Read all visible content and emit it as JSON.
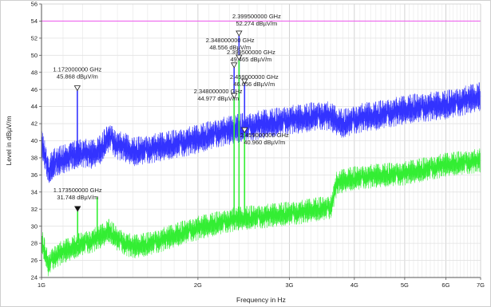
{
  "chart_data": {
    "type": "line",
    "xlabel": "Frequency in Hz",
    "ylabel": "Level in dBµV/m",
    "x_scale": "log",
    "xlim": [
      1,
      7
    ],
    "ylim": [
      24,
      56
    ],
    "grid": true,
    "x_tick_labels": [
      "1G",
      "2G",
      "3G",
      "4G",
      "5G",
      "6G",
      "7G"
    ],
    "x_tick_values": [
      1,
      2,
      3,
      4,
      5,
      6,
      7
    ],
    "y_ticks": [
      24,
      26,
      28,
      30,
      32,
      34,
      36,
      38,
      40,
      42,
      44,
      46,
      48,
      50,
      52,
      54,
      56
    ],
    "colors": {
      "peak": "#3333ff",
      "average": "#33ee33",
      "limit": "#ee66ee",
      "axes": "#555555"
    },
    "limit_line": {
      "value": 54
    },
    "series": [
      {
        "key": "peak",
        "x": [
          1.0,
          1.03,
          1.06,
          1.1,
          1.15,
          1.2,
          1.25,
          1.3,
          1.35,
          1.4,
          1.45,
          1.5,
          1.6,
          1.7,
          1.8,
          1.9,
          2.0,
          2.1,
          2.2,
          2.3,
          2.4,
          2.5,
          2.6,
          2.7,
          2.8,
          2.9,
          3.0,
          3.1,
          3.2,
          3.3,
          3.4,
          3.5,
          3.6,
          3.7,
          3.8,
          3.9,
          4.0,
          4.2,
          4.4,
          4.6,
          4.8,
          5.0,
          5.2,
          5.4,
          5.6,
          5.8,
          6.0,
          6.2,
          6.4,
          6.6,
          6.8,
          7.0
        ],
        "values": [
          40,
          36.5,
          37.5,
          37.8,
          38.3,
          38.6,
          38.4,
          39.0,
          40.5,
          39.5,
          39.2,
          38.7,
          39.0,
          39.3,
          39.6,
          39.9,
          40.2,
          40.6,
          41.0,
          41.2,
          41.5,
          41.6,
          41.8,
          42.0,
          42.1,
          42.3,
          42.5,
          42.5,
          42.6,
          42.8,
          42.9,
          43.0,
          42.8,
          42.3,
          42.0,
          42.2,
          42.5,
          42.8,
          42.9,
          43.2,
          43.4,
          43.6,
          43.8,
          43.9,
          44.0,
          44.1,
          44.2,
          44.4,
          44.6,
          44.8,
          45.0,
          45.2
        ],
        "noise": 1.7
      },
      {
        "key": "average",
        "x": [
          1.0,
          1.03,
          1.06,
          1.1,
          1.15,
          1.2,
          1.25,
          1.3,
          1.35,
          1.4,
          1.45,
          1.5,
          1.6,
          1.7,
          1.8,
          1.9,
          2.0,
          2.1,
          2.2,
          2.3,
          2.4,
          2.5,
          2.6,
          2.7,
          2.8,
          2.9,
          3.0,
          3.1,
          3.2,
          3.3,
          3.4,
          3.5,
          3.6,
          3.7,
          3.8,
          3.9,
          4.0,
          4.2,
          4.4,
          4.6,
          4.8,
          5.0,
          5.2,
          5.4,
          5.6,
          5.8,
          6.0,
          6.2,
          6.4,
          6.6,
          6.8,
          7.0
        ],
        "values": [
          28.5,
          25.5,
          26.5,
          27.0,
          27.5,
          28.0,
          28.3,
          28.8,
          29.5,
          28.5,
          28.0,
          27.6,
          27.9,
          28.4,
          28.9,
          29.4,
          29.8,
          30.1,
          30.4,
          30.7,
          30.9,
          31.0,
          31.1,
          31.2,
          31.3,
          31.4,
          31.5,
          31.6,
          31.7,
          31.9,
          32.0,
          32.1,
          32.2,
          35.0,
          35.3,
          35.5,
          35.6,
          35.8,
          35.9,
          36.0,
          36.1,
          36.2,
          36.4,
          36.6,
          36.8,
          37.0,
          37.2,
          37.3,
          37.4,
          37.5,
          37.6,
          37.7
        ],
        "noise": 1.4
      }
    ],
    "spikes": [
      {
        "series": "peak",
        "x": 1.172,
        "top": 45.868,
        "base": 38.5
      },
      {
        "series": "peak",
        "x": 2.348,
        "top": 48.556,
        "base": 41.3
      },
      {
        "series": "peak",
        "x": 2.3995,
        "top": 52.274,
        "base": 41.4
      },
      {
        "series": "peak",
        "x": 2.459,
        "top": 46.656,
        "base": 41.6
      },
      {
        "series": "average",
        "x": 1.1735,
        "top": 31.748,
        "base": 28.0
      },
      {
        "series": "average",
        "x": 1.28,
        "top": 33.4,
        "base": 29.0
      },
      {
        "series": "average",
        "x": 2.348,
        "top": 44.977,
        "base": 31.0
      },
      {
        "series": "average",
        "x": 2.3995,
        "top": 49.465,
        "base": 31.0
      },
      {
        "series": "average",
        "x": 2.459,
        "top": 40.96,
        "base": 31.1
      }
    ],
    "markers": [
      {
        "x": 1.172,
        "y": 45.868,
        "freq": "1.172000000 GHz",
        "level": "45.868 dBµV/m",
        "filled": false,
        "label_anchor": "above"
      },
      {
        "x": 2.348,
        "y": 48.556,
        "freq": "2.348000000 GHz",
        "level": "48.556 dBµV/m",
        "filled": false,
        "label_anchor": "left"
      },
      {
        "x": 2.3995,
        "y": 52.274,
        "freq": "2.399500000 GHz",
        "level": "52.274 dBµV/m",
        "filled": false,
        "label_anchor": "right-high"
      },
      {
        "x": 2.3995,
        "y": 49.465,
        "freq": "2.399500000 GHz",
        "level": "49.465 dBµV/m",
        "filled": false,
        "label_anchor": "right-mid"
      },
      {
        "x": 2.459,
        "y": 46.656,
        "freq": "2.459000000 GHz",
        "level": "46.656 dBµV/m",
        "filled": false,
        "label_anchor": "right-low"
      },
      {
        "x": 2.348,
        "y": 44.977,
        "freq": "2.348000000 GHz",
        "level": "44.977 dBµV/m",
        "filled": false,
        "label_anchor": "left-low"
      },
      {
        "x": 2.459,
        "y": 40.96,
        "freq": "2.459000000 GHz",
        "level": "40.960 dBµV/m",
        "filled": false,
        "label_anchor": "below-right"
      },
      {
        "x": 1.1735,
        "y": 31.748,
        "freq": "1.173500000 GHz",
        "level": "31.748 dBµV/m",
        "filled": true,
        "label_anchor": "above"
      }
    ]
  }
}
